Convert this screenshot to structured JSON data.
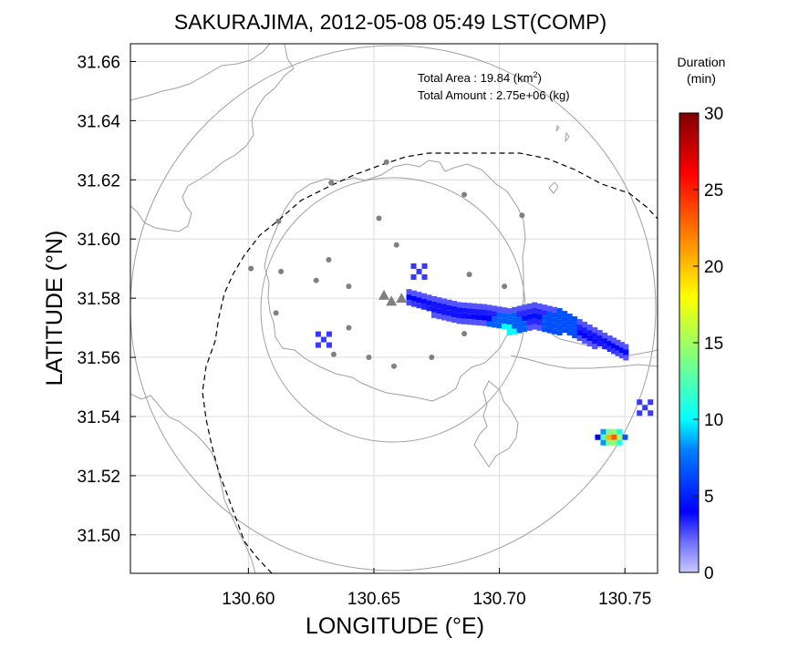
{
  "figure": {
    "title": "SAKURAJIMA, 2012-05-08 05:49 LST(COMP)",
    "xlabel": "LONGITUDE (°E)",
    "ylabel": "LATITUDE (°N)",
    "info": {
      "area_label": "Total Area   : 19.84 (km",
      "area_sup": "2",
      "area_close": ")",
      "amount_label": "Total Amount : 2.75e+06 (kg)"
    },
    "colorbar": {
      "title_line1": "Duration",
      "title_line2": "(min)",
      "ticks": [
        "30",
        "25",
        "20",
        "15",
        "10",
        "5",
        "0"
      ],
      "colors": [
        "#7f0000",
        "#ff0000",
        "#ff8000",
        "#ffff00",
        "#80ff80",
        "#00ffff",
        "#0080ff",
        "#0000ff",
        "#c8c8ff"
      ]
    }
  },
  "chart_data": {
    "type": "heatmap",
    "title": "SAKURAJIMA, 2012-05-08 05:49 LST(COMP)",
    "xlabel": "LONGITUDE (°E)",
    "ylabel": "LATITUDE (°N)",
    "xlim": [
      130.553,
      130.763
    ],
    "ylim": [
      31.487,
      31.666
    ],
    "xticks": [
      "130.60",
      "130.65",
      "130.70",
      "130.75"
    ],
    "yticks": [
      "31.66",
      "31.64",
      "31.62",
      "31.60",
      "31.58",
      "31.56",
      "31.54",
      "31.52",
      "31.50"
    ],
    "grid": true,
    "value_label": "Duration (min)",
    "value_range": [
      0,
      30
    ],
    "total_area_km2": 19.84,
    "total_amount_kg": 2750000.0,
    "plume": [
      {
        "lon": 130.67,
        "lat": 31.577,
        "duration": 4
      },
      {
        "lon": 130.68,
        "lat": 31.575,
        "duration": 4
      },
      {
        "lon": 130.69,
        "lat": 31.574,
        "duration": 5
      },
      {
        "lon": 130.7,
        "lat": 31.572,
        "duration": 7
      },
      {
        "lon": 130.703,
        "lat": 31.567,
        "duration": 10
      },
      {
        "lon": 130.71,
        "lat": 31.573,
        "duration": 5
      },
      {
        "lon": 130.72,
        "lat": 31.574,
        "duration": 6
      },
      {
        "lon": 130.725,
        "lat": 31.569,
        "duration": 8
      },
      {
        "lon": 130.735,
        "lat": 31.566,
        "duration": 5
      },
      {
        "lon": 130.745,
        "lat": 31.563,
        "duration": 4
      },
      {
        "lon": 130.752,
        "lat": 31.561,
        "duration": 3
      }
    ],
    "hotspot": [
      {
        "lon": 130.745,
        "lat": 31.533,
        "duration": 25
      },
      {
        "lon": 130.748,
        "lat": 31.535,
        "duration": 18
      },
      {
        "lon": 130.742,
        "lat": 31.533,
        "duration": 8
      }
    ],
    "isolated": [
      {
        "lon": 130.63,
        "lat": 31.566,
        "duration": 3
      },
      {
        "lon": 130.668,
        "lat": 31.589,
        "duration": 3
      },
      {
        "lon": 130.758,
        "lat": 31.543,
        "duration": 3
      }
    ],
    "stations": [
      {
        "lon": 130.655,
        "lat": 31.626
      },
      {
        "lon": 130.633,
        "lat": 31.619
      },
      {
        "lon": 130.612,
        "lat": 31.606
      },
      {
        "lon": 130.601,
        "lat": 31.59
      },
      {
        "lon": 130.613,
        "lat": 31.589
      },
      {
        "lon": 130.627,
        "lat": 31.586
      },
      {
        "lon": 130.632,
        "lat": 31.593
      },
      {
        "lon": 130.64,
        "lat": 31.584
      },
      {
        "lon": 130.652,
        "lat": 31.607
      },
      {
        "lon": 130.659,
        "lat": 31.598
      },
      {
        "lon": 130.686,
        "lat": 31.615
      },
      {
        "lon": 130.709,
        "lat": 31.608
      },
      {
        "lon": 130.688,
        "lat": 31.588
      },
      {
        "lon": 130.702,
        "lat": 31.584
      },
      {
        "lon": 130.611,
        "lat": 31.575
      },
      {
        "lon": 130.64,
        "lat": 31.57
      },
      {
        "lon": 130.634,
        "lat": 31.561
      },
      {
        "lon": 130.648,
        "lat": 31.56
      },
      {
        "lon": 130.658,
        "lat": 31.557
      },
      {
        "lon": 130.673,
        "lat": 31.56
      },
      {
        "lon": 130.686,
        "lat": 31.568
      }
    ],
    "vents": [
      {
        "lon": 130.654,
        "lat": 31.581
      },
      {
        "lon": 130.657,
        "lat": 31.579
      },
      {
        "lon": 130.661,
        "lat": 31.58
      }
    ]
  }
}
